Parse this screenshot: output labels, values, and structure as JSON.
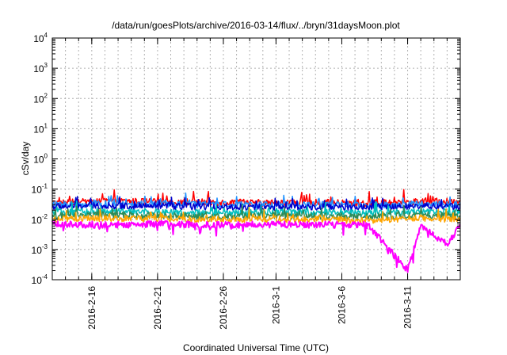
{
  "chart_data": {
    "type": "line",
    "title": "/data/run/goesPlots/archive/2016-03-14/flux/../bryn/31daysMoon.plot",
    "xlabel": "Coordinated Universal Time (UTC)",
    "ylabel": "cSv/day",
    "y_scale": "log",
    "ylim": [
      0.0001,
      10000
    ],
    "xlim": [
      "2016-02-13",
      "2016-03-15"
    ],
    "grid": true,
    "legend": "none",
    "x_ticks": [
      "2016-2-16",
      "2016-2-21",
      "2016-2-26",
      "2016-3-1",
      "2016-3-6",
      "2016-3-11"
    ],
    "y_ticks": [
      {
        "base": "10",
        "exp": "-4"
      },
      {
        "base": "10",
        "exp": "-3"
      },
      {
        "base": "10",
        "exp": "-2"
      },
      {
        "base": "10",
        "exp": "-1"
      },
      {
        "base": "10",
        "exp": "0"
      },
      {
        "base": "10",
        "exp": "1"
      },
      {
        "base": "10",
        "exp": "2"
      },
      {
        "base": "10",
        "exp": "3"
      },
      {
        "base": "10",
        "exp": "4"
      }
    ],
    "series": [
      {
        "color": "#ff0000",
        "x": [
          "2016-02-13",
          "2016-02-17",
          "2016-02-21",
          "2016-02-25",
          "2016-02-29",
          "2016-03-04",
          "2016-03-08",
          "2016-03-12",
          "2016-03-15"
        ],
        "values": [
          0.035,
          0.04,
          0.038,
          0.037,
          0.035,
          0.036,
          0.034,
          0.04,
          0.038
        ]
      },
      {
        "color": "#1e90ff",
        "x": [
          "2016-02-13",
          "2016-02-17",
          "2016-02-21",
          "2016-02-25",
          "2016-02-29",
          "2016-03-04",
          "2016-03-08",
          "2016-03-12",
          "2016-03-15"
        ],
        "values": [
          0.03,
          0.033,
          0.032,
          0.031,
          0.03,
          0.031,
          0.029,
          0.032,
          0.03
        ]
      },
      {
        "color": "#0000cd",
        "x": [
          "2016-02-13",
          "2016-02-17",
          "2016-02-21",
          "2016-02-25",
          "2016-02-29",
          "2016-03-04",
          "2016-03-08",
          "2016-03-12",
          "2016-03-15"
        ],
        "values": [
          0.026,
          0.028,
          0.027,
          0.026,
          0.025,
          0.026,
          0.025,
          0.027,
          0.026
        ]
      },
      {
        "color": "#00bfbf",
        "x": [
          "2016-02-13",
          "2016-02-17",
          "2016-02-21",
          "2016-02-25",
          "2016-02-29",
          "2016-03-04",
          "2016-03-08",
          "2016-03-12",
          "2016-03-15"
        ],
        "values": [
          0.017,
          0.018,
          0.017,
          0.016,
          0.017,
          0.017,
          0.016,
          0.018,
          0.017
        ]
      },
      {
        "color": "#2e8b57",
        "x": [
          "2016-02-13",
          "2016-02-17",
          "2016-02-21",
          "2016-02-25",
          "2016-02-29",
          "2016-03-04",
          "2016-03-08",
          "2016-03-12",
          "2016-03-15"
        ],
        "values": [
          0.013,
          0.014,
          0.013,
          0.013,
          0.013,
          0.013,
          0.012,
          0.014,
          0.013
        ]
      },
      {
        "color": "#ffa500",
        "x": [
          "2016-02-13",
          "2016-02-17",
          "2016-02-21",
          "2016-02-25",
          "2016-02-29",
          "2016-03-04",
          "2016-03-08",
          "2016-03-12",
          "2016-03-15"
        ],
        "values": [
          0.01,
          0.011,
          0.01,
          0.01,
          0.01,
          0.01,
          0.009,
          0.011,
          0.01
        ]
      },
      {
        "color": "#ff00ff",
        "x": [
          "2016-02-13",
          "2016-02-17",
          "2016-02-21",
          "2016-02-25",
          "2016-02-29",
          "2016-03-04",
          "2016-03-08",
          "2016-03-11",
          "2016-03-12",
          "2016-03-14",
          "2016-03-15"
        ],
        "values": [
          0.007,
          0.0065,
          0.007,
          0.0065,
          0.0068,
          0.0066,
          0.0065,
          0.0002,
          0.006,
          0.0015,
          0.006
        ]
      }
    ]
  }
}
